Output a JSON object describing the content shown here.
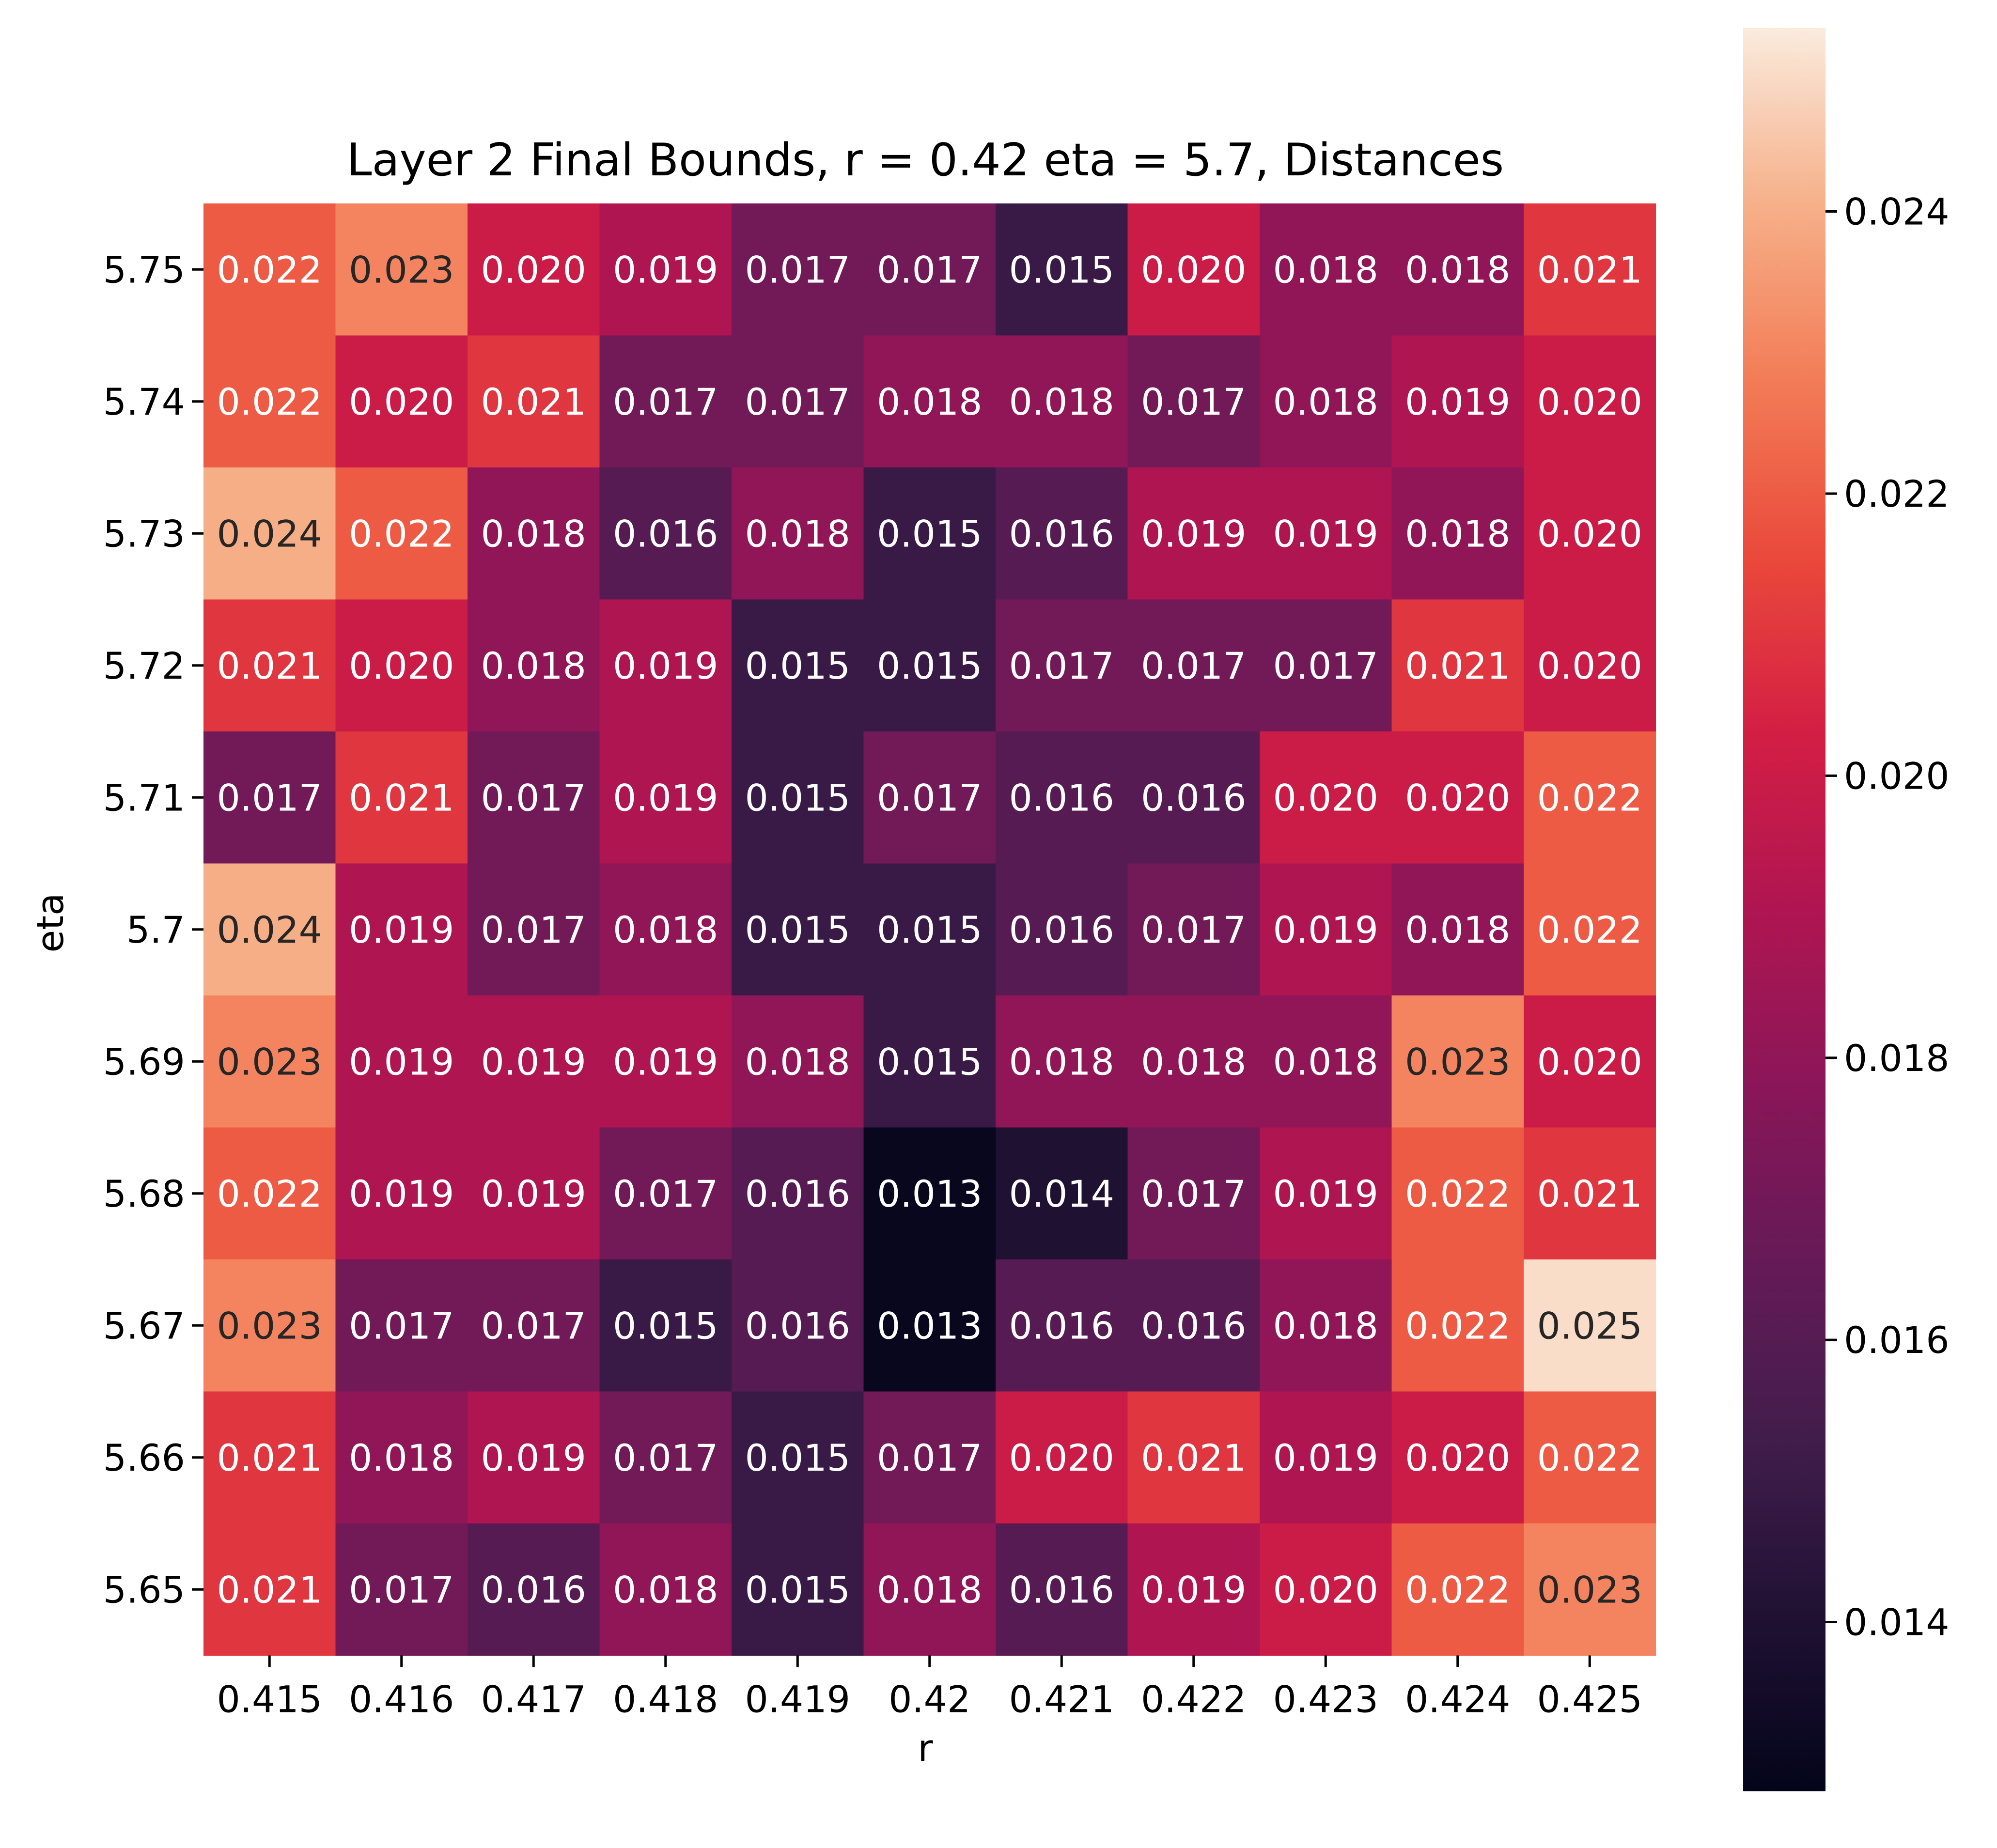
{
  "chart_data": {
    "type": "heatmap",
    "title": "Layer 2 Final Bounds, r = 0.42 eta = 5.7, Distances",
    "xlabel": "r",
    "ylabel": "eta",
    "x_tick_labels": [
      "0.415",
      "0.416",
      "0.417",
      "0.418",
      "0.419",
      "0.42",
      "0.421",
      "0.422",
      "0.423",
      "0.424",
      "0.425"
    ],
    "y_tick_labels": [
      "5.75",
      "5.74",
      "5.73",
      "5.72",
      "5.71",
      "5.7",
      "5.69",
      "5.68",
      "5.67",
      "5.66",
      "5.65"
    ],
    "values": [
      [
        0.022,
        0.023,
        0.02,
        0.019,
        0.017,
        0.017,
        0.015,
        0.02,
        0.018,
        0.018,
        0.021
      ],
      [
        0.022,
        0.02,
        0.021,
        0.017,
        0.017,
        0.018,
        0.018,
        0.017,
        0.018,
        0.019,
        0.02
      ],
      [
        0.024,
        0.022,
        0.018,
        0.016,
        0.018,
        0.015,
        0.016,
        0.019,
        0.019,
        0.018,
        0.02
      ],
      [
        0.021,
        0.02,
        0.018,
        0.019,
        0.015,
        0.015,
        0.017,
        0.017,
        0.017,
        0.021,
        0.02
      ],
      [
        0.017,
        0.021,
        0.017,
        0.019,
        0.015,
        0.017,
        0.016,
        0.016,
        0.02,
        0.02,
        0.022
      ],
      [
        0.024,
        0.019,
        0.017,
        0.018,
        0.015,
        0.015,
        0.016,
        0.017,
        0.019,
        0.018,
        0.022
      ],
      [
        0.023,
        0.019,
        0.019,
        0.019,
        0.018,
        0.015,
        0.018,
        0.018,
        0.018,
        0.023,
        0.02
      ],
      [
        0.022,
        0.019,
        0.019,
        0.017,
        0.016,
        0.013,
        0.014,
        0.017,
        0.019,
        0.022,
        0.021
      ],
      [
        0.023,
        0.017,
        0.017,
        0.015,
        0.016,
        0.013,
        0.016,
        0.016,
        0.018,
        0.022,
        0.025
      ],
      [
        0.021,
        0.018,
        0.019,
        0.017,
        0.015,
        0.017,
        0.02,
        0.021,
        0.019,
        0.02,
        0.022
      ],
      [
        0.021,
        0.017,
        0.016,
        0.018,
        0.015,
        0.018,
        0.016,
        0.019,
        0.02,
        0.022,
        0.023
      ]
    ],
    "color_range": [
      0.0128,
      0.0253
    ],
    "colormap": "rocket",
    "colorbar_ticks": [
      "0.014",
      "0.016",
      "0.018",
      "0.020",
      "0.022",
      "0.024"
    ],
    "legend": "colorbar-right",
    "grid": false
  }
}
